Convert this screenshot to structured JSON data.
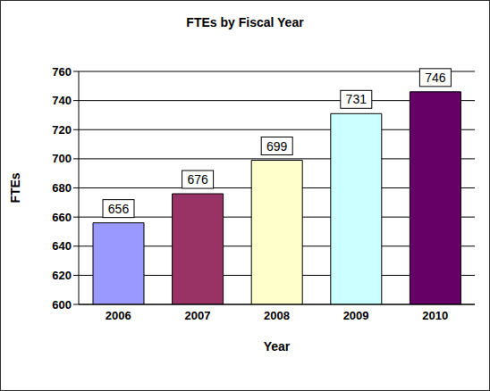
{
  "chart_data": {
    "type": "bar",
    "title": "FTEs by Fiscal Year",
    "x_label": "Year",
    "y_label": "FTEs",
    "categories": [
      "2006",
      "2007",
      "2008",
      "2009",
      "2010"
    ],
    "values": [
      656,
      676,
      699,
      731,
      746
    ],
    "colors": [
      "#9999ff",
      "#993366",
      "#ffffcc",
      "#ccffff",
      "#660066"
    ],
    "ylim": [
      600,
      760
    ],
    "yticks": [
      600,
      620,
      640,
      660,
      680,
      700,
      720,
      740,
      760
    ],
    "grid": true,
    "data_labels": true
  }
}
